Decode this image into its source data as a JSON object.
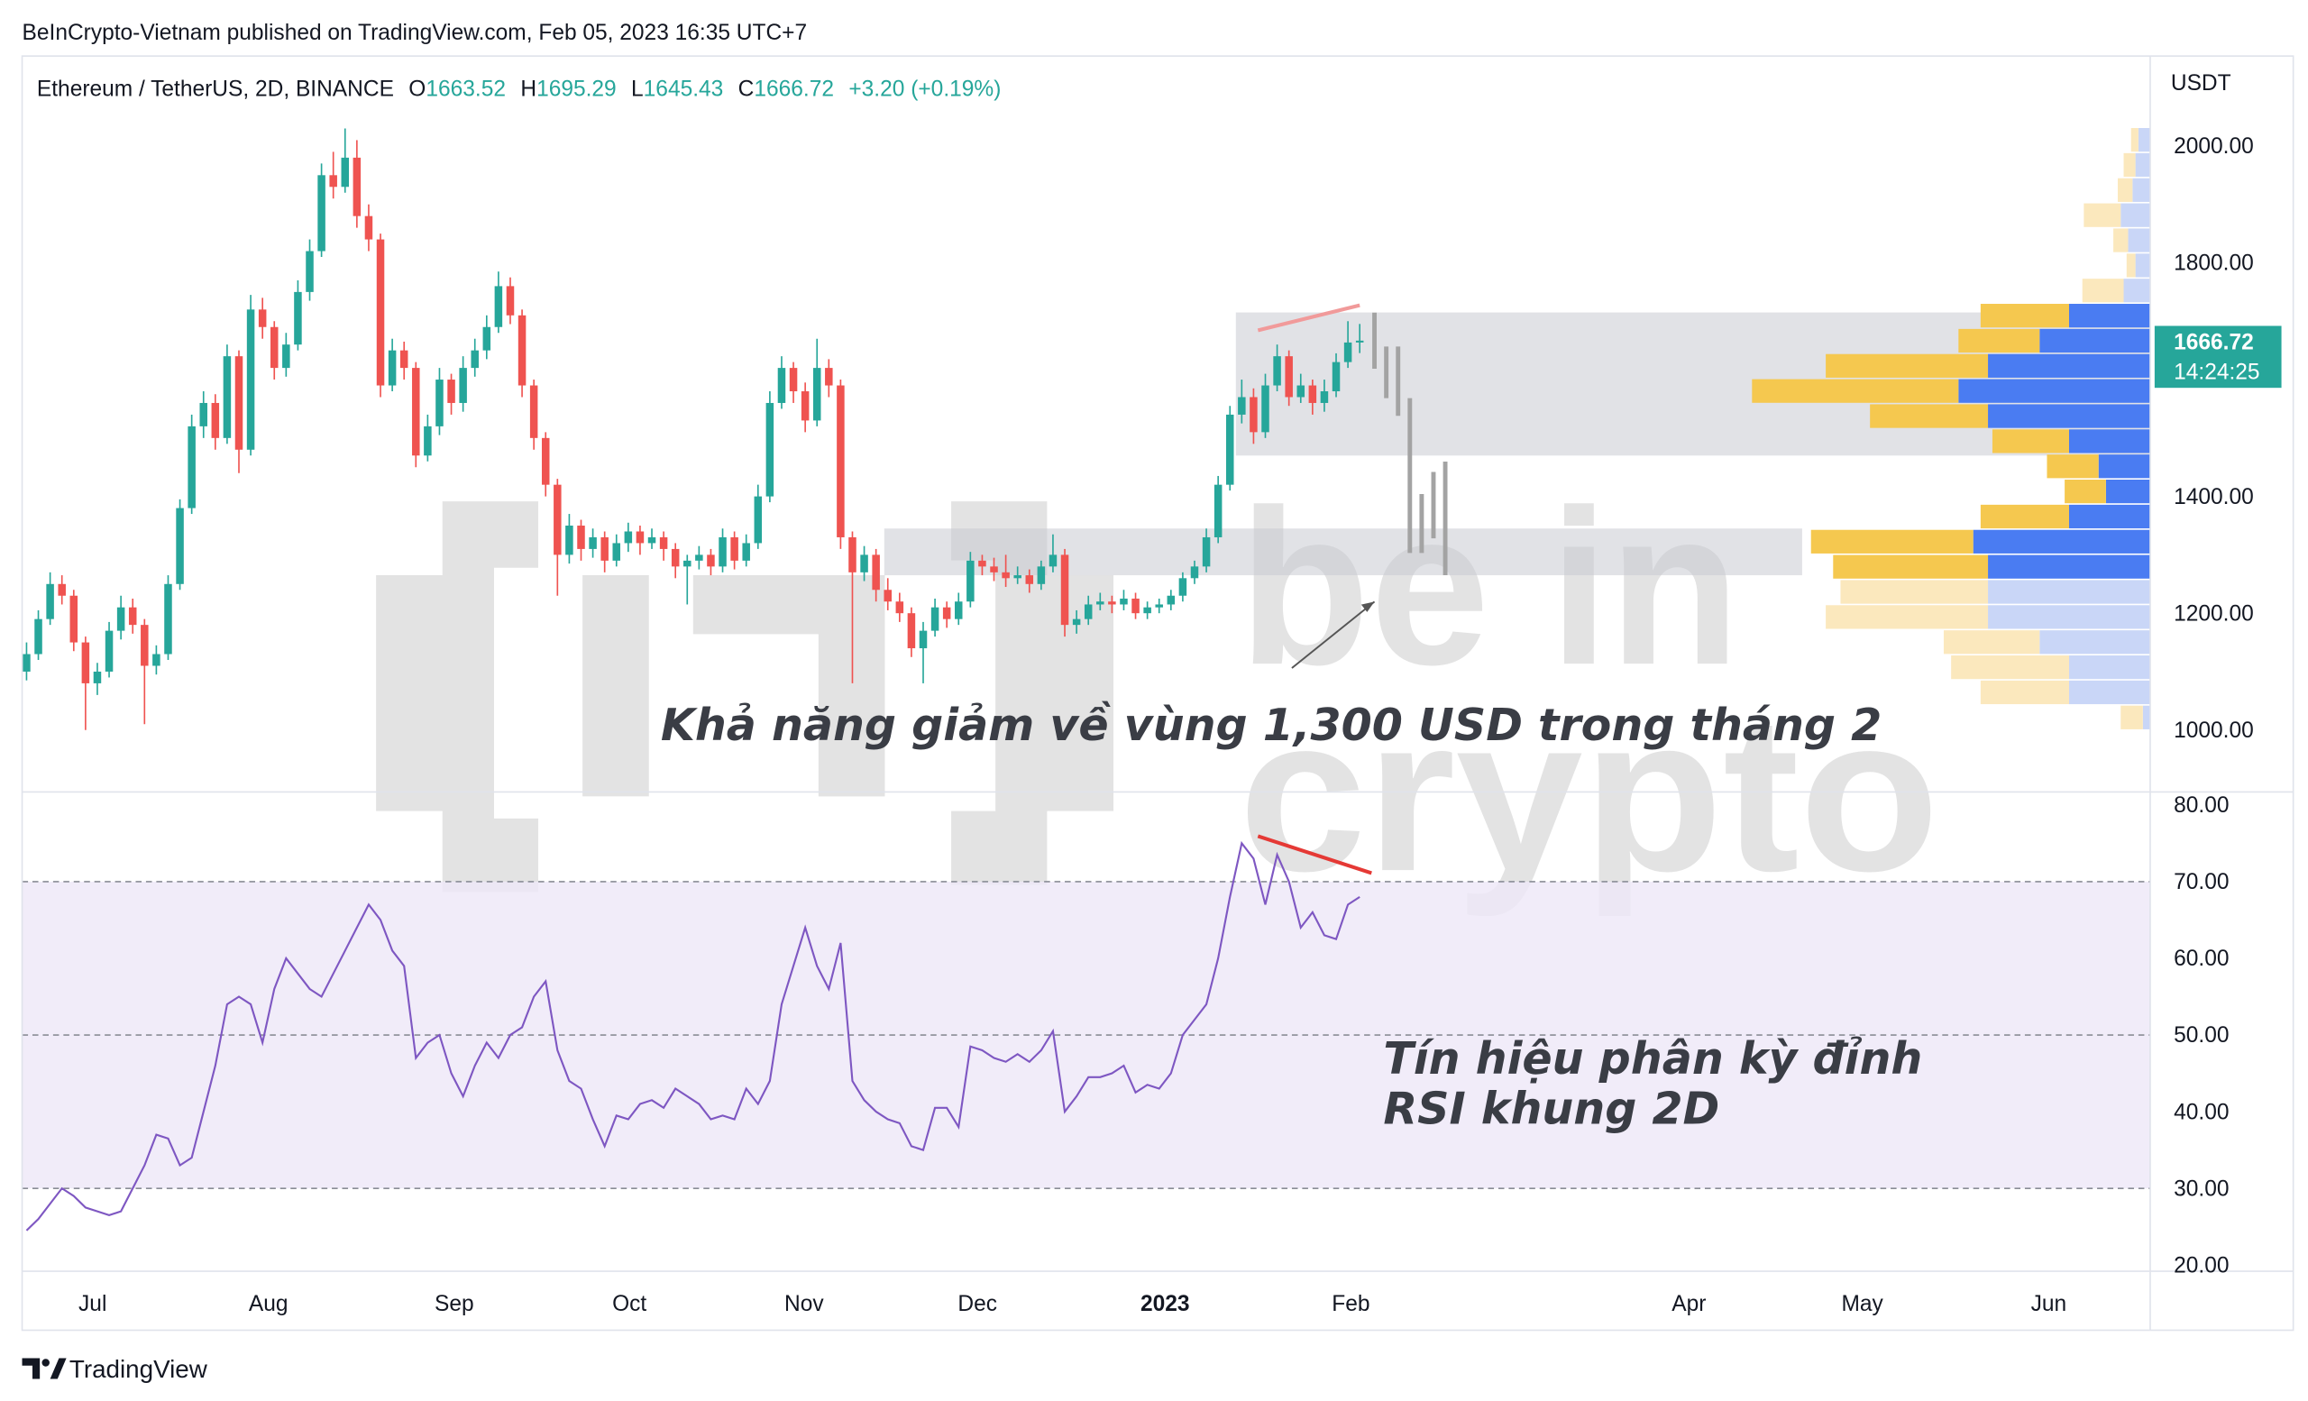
{
  "header": {
    "published": "BeInCrypto-Vietnam published on TradingView.com, Feb 05, 2023 16:35 UTC+7",
    "axis_unit": "USDT",
    "countdown": "14:24:25",
    "footer": "TradingView"
  },
  "legend": {
    "symbol": "Ethereum / TetherUS, 2D, BINANCE",
    "labels": [
      "O",
      "H",
      "L",
      "C"
    ],
    "change": "+3.20 (+0.19%)"
  },
  "watermark": [
    "be in",
    "crypto"
  ],
  "chart_data": [
    {
      "type": "candlestick",
      "up_color": "#26a69a",
      "down_color": "#ef5350",
      "xlim": [
        -0.375,
        180
      ],
      "xticks": [
        {
          "value": 5.6,
          "label": "Jul"
        },
        {
          "value": 20.5,
          "label": "Aug"
        },
        {
          "value": 36.25,
          "label": "Sep"
        },
        {
          "value": 51.1,
          "label": "Oct"
        },
        {
          "value": 65.9,
          "label": "Nov"
        },
        {
          "value": 80.6,
          "label": "Dec"
        },
        {
          "value": 96.5,
          "label": "2023"
        },
        {
          "value": 112.25,
          "label": "Feb"
        },
        {
          "value": 140.9,
          "label": "Apr"
        },
        {
          "value": 155.6,
          "label": "May"
        },
        {
          "value": 171.4,
          "label": "Jun"
        }
      ],
      "ylim": [
        894,
        2154
      ],
      "yticks": [
        {
          "value": 1000,
          "label": "1000.00"
        },
        {
          "value": 1200,
          "label": "1200.00"
        },
        {
          "value": 1400,
          "label": "1400.00"
        },
        {
          "value": 1800,
          "label": "1800.00"
        },
        {
          "value": 2000,
          "label": "2000.00"
        }
      ],
      "grid": false,
      "ohlc": [
        [
          1100,
          1150,
          1085,
          1130
        ],
        [
          1130,
          1205,
          1120,
          1190
        ],
        [
          1190,
          1270,
          1180,
          1250
        ],
        [
          1250,
          1265,
          1215,
          1230
        ],
        [
          1230,
          1240,
          1135,
          1150
        ],
        [
          1150,
          1160,
          1000,
          1080
        ],
        [
          1080,
          1115,
          1060,
          1100
        ],
        [
          1100,
          1185,
          1090,
          1170
        ],
        [
          1170,
          1230,
          1155,
          1210
        ],
        [
          1210,
          1225,
          1165,
          1180
        ],
        [
          1180,
          1190,
          1010,
          1110
        ],
        [
          1110,
          1145,
          1095,
          1130
        ],
        [
          1130,
          1265,
          1120,
          1250
        ],
        [
          1250,
          1395,
          1240,
          1380
        ],
        [
          1380,
          1540,
          1370,
          1520
        ],
        [
          1520,
          1580,
          1500,
          1560
        ],
        [
          1560,
          1575,
          1480,
          1500
        ],
        [
          1500,
          1660,
          1490,
          1640
        ],
        [
          1640,
          1650,
          1440,
          1480
        ],
        [
          1480,
          1745,
          1470,
          1720
        ],
        [
          1720,
          1740,
          1670,
          1690
        ],
        [
          1690,
          1700,
          1600,
          1620
        ],
        [
          1620,
          1680,
          1605,
          1660
        ],
        [
          1660,
          1770,
          1650,
          1750
        ],
        [
          1750,
          1840,
          1735,
          1820
        ],
        [
          1820,
          1970,
          1810,
          1950
        ],
        [
          1950,
          1990,
          1910,
          1930
        ],
        [
          1930,
          2030,
          1920,
          1980
        ],
        [
          1980,
          2010,
          1860,
          1880
        ],
        [
          1880,
          1900,
          1820,
          1840
        ],
        [
          1840,
          1850,
          1570,
          1590
        ],
        [
          1590,
          1670,
          1580,
          1650
        ],
        [
          1650,
          1665,
          1600,
          1620
        ],
        [
          1620,
          1630,
          1450,
          1470
        ],
        [
          1470,
          1540,
          1460,
          1520
        ],
        [
          1520,
          1620,
          1505,
          1600
        ],
        [
          1600,
          1610,
          1540,
          1560
        ],
        [
          1560,
          1640,
          1545,
          1620
        ],
        [
          1620,
          1670,
          1605,
          1650
        ],
        [
          1650,
          1710,
          1635,
          1690
        ],
        [
          1690,
          1785,
          1680,
          1760
        ],
        [
          1760,
          1775,
          1695,
          1710
        ],
        [
          1710,
          1720,
          1570,
          1590
        ],
        [
          1590,
          1600,
          1480,
          1500
        ],
        [
          1500,
          1510,
          1400,
          1420
        ],
        [
          1420,
          1430,
          1230,
          1300
        ],
        [
          1300,
          1370,
          1285,
          1350
        ],
        [
          1350,
          1360,
          1290,
          1310
        ],
        [
          1310,
          1345,
          1295,
          1330
        ],
        [
          1330,
          1340,
          1270,
          1290
        ],
        [
          1290,
          1335,
          1280,
          1320
        ],
        [
          1320,
          1355,
          1305,
          1340
        ],
        [
          1340,
          1350,
          1300,
          1320
        ],
        [
          1320,
          1345,
          1310,
          1330
        ],
        [
          1330,
          1340,
          1290,
          1310
        ],
        [
          1310,
          1320,
          1260,
          1280
        ],
        [
          1280,
          1300,
          1215,
          1290
        ],
        [
          1290,
          1315,
          1275,
          1300
        ],
        [
          1300,
          1310,
          1265,
          1280
        ],
        [
          1280,
          1345,
          1270,
          1330
        ],
        [
          1330,
          1340,
          1275,
          1290
        ],
        [
          1290,
          1335,
          1280,
          1320
        ],
        [
          1320,
          1420,
          1310,
          1400
        ],
        [
          1400,
          1580,
          1390,
          1560
        ],
        [
          1560,
          1640,
          1550,
          1620
        ],
        [
          1620,
          1630,
          1560,
          1580
        ],
        [
          1580,
          1595,
          1510,
          1530
        ],
        [
          1530,
          1670,
          1520,
          1620
        ],
        [
          1620,
          1635,
          1570,
          1590
        ],
        [
          1590,
          1600,
          1310,
          1330
        ],
        [
          1330,
          1340,
          1080,
          1270
        ],
        [
          1270,
          1315,
          1255,
          1300
        ],
        [
          1300,
          1310,
          1220,
          1240
        ],
        [
          1240,
          1260,
          1205,
          1220
        ],
        [
          1220,
          1235,
          1185,
          1200
        ],
        [
          1200,
          1210,
          1125,
          1140
        ],
        [
          1140,
          1185,
          1080,
          1170
        ],
        [
          1170,
          1225,
          1160,
          1210
        ],
        [
          1210,
          1220,
          1175,
          1190
        ],
        [
          1190,
          1235,
          1180,
          1220
        ],
        [
          1220,
          1305,
          1210,
          1290
        ],
        [
          1290,
          1300,
          1265,
          1280
        ],
        [
          1280,
          1295,
          1255,
          1270
        ],
        [
          1270,
          1300,
          1245,
          1260
        ],
        [
          1260,
          1280,
          1250,
          1265
        ],
        [
          1265,
          1275,
          1235,
          1250
        ],
        [
          1250,
          1290,
          1240,
          1280
        ],
        [
          1280,
          1335,
          1270,
          1300
        ],
        [
          1300,
          1310,
          1160,
          1180
        ],
        [
          1180,
          1205,
          1165,
          1190
        ],
        [
          1190,
          1230,
          1180,
          1215
        ],
        [
          1215,
          1235,
          1205,
          1220
        ],
        [
          1220,
          1230,
          1200,
          1215
        ],
        [
          1215,
          1240,
          1205,
          1225
        ],
        [
          1225,
          1235,
          1190,
          1200
        ],
        [
          1200,
          1220,
          1190,
          1210
        ],
        [
          1210,
          1225,
          1200,
          1215
        ],
        [
          1215,
          1240,
          1205,
          1230
        ],
        [
          1230,
          1270,
          1220,
          1260
        ],
        [
          1260,
          1290,
          1250,
          1280
        ],
        [
          1280,
          1345,
          1270,
          1330
        ],
        [
          1330,
          1435,
          1320,
          1420
        ],
        [
          1420,
          1555,
          1410,
          1540
        ],
        [
          1540,
          1600,
          1525,
          1570
        ],
        [
          1570,
          1585,
          1490,
          1510
        ],
        [
          1510,
          1610,
          1500,
          1590
        ],
        [
          1590,
          1660,
          1580,
          1640
        ],
        [
          1640,
          1650,
          1555,
          1570
        ],
        [
          1570,
          1610,
          1560,
          1590
        ],
        [
          1590,
          1600,
          1540,
          1560
        ],
        [
          1560,
          1600,
          1545,
          1580
        ],
        [
          1580,
          1645,
          1570,
          1630
        ],
        [
          1630,
          1700,
          1620,
          1663.52
        ],
        [
          1663.52,
          1695.29,
          1645.43,
          1666.72
        ]
      ],
      "zones": [
        {
          "low": 1470,
          "high": 1715,
          "start": 102.5,
          "end": 180
        },
        {
          "low": 1265,
          "high": 1345,
          "start": 72.7,
          "end": 150.5
        }
      ],
      "volume_profile": {
        "bins": [
          1000,
          1043,
          1086,
          1129,
          1172,
          1215,
          1258,
          1301,
          1344,
          1387,
          1430,
          1473,
          1516,
          1559,
          1602,
          1645,
          1688,
          1731,
          1774,
          1817,
          1860,
          1903,
          1946,
          1989,
          2032
        ],
        "up": [
          5,
          55,
          55,
          75,
          110,
          110,
          110,
          120,
          55,
          30,
          35,
          55,
          110,
          130,
          110,
          75,
          55,
          18,
          10,
          15,
          20,
          12,
          10,
          8
        ],
        "down": [
          15,
          60,
          80,
          65,
          110,
          100,
          105,
          110,
          60,
          28,
          35,
          52,
          80,
          140,
          110,
          55,
          60,
          28,
          6,
          10,
          25,
          10,
          8,
          5
        ],
        "value_area": [
          1258,
          1731
        ],
        "up_color": "#4a7cf2",
        "down_color": "#f5c84f",
        "up_faint_color": "#c9d6f7",
        "down_faint_color": "#fbe8bd"
      },
      "annotations": [
        "Khả năng giảm về vùng 1,300 USD trong tháng 2"
      ]
    },
    {
      "type": "line",
      "color": "#7e57c2",
      "ylim": [
        19.2,
        81.7
      ],
      "yticks": [
        {
          "value": 80,
          "label": "80.00"
        },
        {
          "value": 70,
          "label": "70.00"
        },
        {
          "value": 60,
          "label": "60.00"
        },
        {
          "value": 50,
          "label": "50.00"
        },
        {
          "value": 40,
          "label": "40.00"
        },
        {
          "value": 30,
          "label": "30.00"
        },
        {
          "value": 20,
          "label": "20.00"
        }
      ],
      "band": [
        30,
        70
      ],
      "levels": [
        70,
        50,
        30
      ],
      "values": [
        24.5,
        26,
        28,
        30,
        29,
        27.5,
        27,
        26.5,
        27,
        30,
        33,
        37,
        36.5,
        33,
        34,
        40,
        46,
        54,
        55,
        54,
        49,
        56,
        60,
        58,
        56,
        55,
        58,
        61,
        64,
        67,
        65,
        61,
        59,
        47,
        49,
        50,
        45,
        42,
        46,
        49,
        47,
        50,
        51,
        55,
        57,
        48,
        44,
        43,
        39,
        35.5,
        39.5,
        39,
        41,
        41.5,
        40.5,
        43,
        42,
        41,
        39,
        39.5,
        39,
        43,
        41,
        44,
        54,
        59,
        64,
        59,
        56,
        62,
        44,
        41.5,
        40,
        39,
        38.5,
        35.5,
        35,
        40.5,
        40.5,
        38,
        48.5,
        48,
        47,
        46.5,
        47.5,
        46.5,
        48,
        50.5,
        40,
        42,
        44.5,
        44.5,
        45,
        46,
        42.5,
        43.5,
        43,
        45,
        50,
        52,
        54,
        60,
        68,
        75,
        73,
        67,
        73.5,
        70,
        64,
        66,
        63,
        62.5,
        67,
        68
      ],
      "annotations": [
        "Tín hiệu phân kỳ đỉnh",
        "RSI khung 2D"
      ]
    }
  ]
}
